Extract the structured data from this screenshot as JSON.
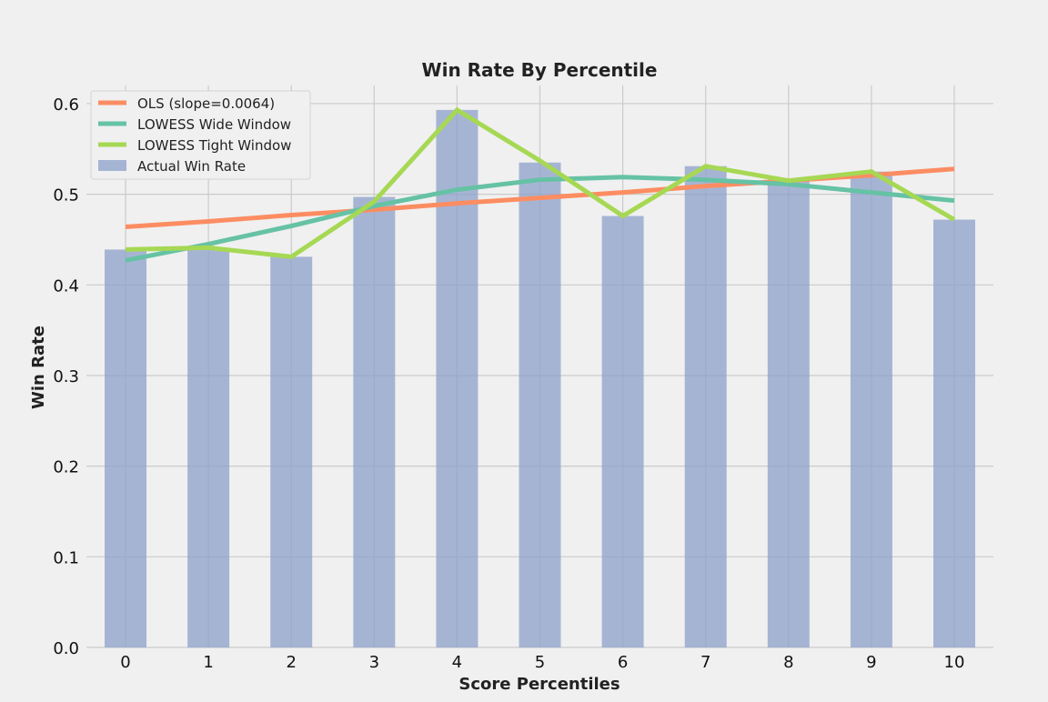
{
  "chart_data": {
    "type": "bar",
    "title": "Win Rate By Percentile",
    "xlabel": "Score Percentiles",
    "ylabel": "Win Rate",
    "categories": [
      "0",
      "1",
      "2",
      "3",
      "4",
      "5",
      "6",
      "7",
      "8",
      "9",
      "10"
    ],
    "x": [
      0,
      1,
      2,
      3,
      4,
      5,
      6,
      7,
      8,
      9,
      10
    ],
    "ylim": [
      0,
      0.62
    ],
    "yticks": [
      0.0,
      0.1,
      0.2,
      0.3,
      0.4,
      0.5,
      0.6
    ],
    "ytick_labels": [
      "0.0",
      "0.1",
      "0.2",
      "0.3",
      "0.4",
      "0.5",
      "0.6"
    ],
    "grid": true,
    "legend_position": "top-left",
    "bars": {
      "name": "Actual Win Rate",
      "color": "#8da0cb",
      "values": [
        0.439,
        0.441,
        0.431,
        0.497,
        0.593,
        0.535,
        0.476,
        0.531,
        0.515,
        0.525,
        0.472
      ]
    },
    "lines": [
      {
        "name": "OLS (slope=0.0064)",
        "color": "#fc8d62",
        "values": [
          0.464,
          0.47,
          0.477,
          0.483,
          0.49,
          0.496,
          0.502,
          0.509,
          0.515,
          0.521,
          0.528
        ]
      },
      {
        "name": "LOWESS Wide Window",
        "color": "#66c2a5",
        "values": [
          0.427,
          0.445,
          0.465,
          0.487,
          0.505,
          0.516,
          0.519,
          0.516,
          0.511,
          0.502,
          0.493
        ]
      },
      {
        "name": "LOWESS Tight Window",
        "color": "#a6d854",
        "values": [
          0.439,
          0.441,
          0.431,
          0.492,
          0.593,
          0.537,
          0.476,
          0.531,
          0.515,
          0.525,
          0.472
        ]
      }
    ]
  }
}
